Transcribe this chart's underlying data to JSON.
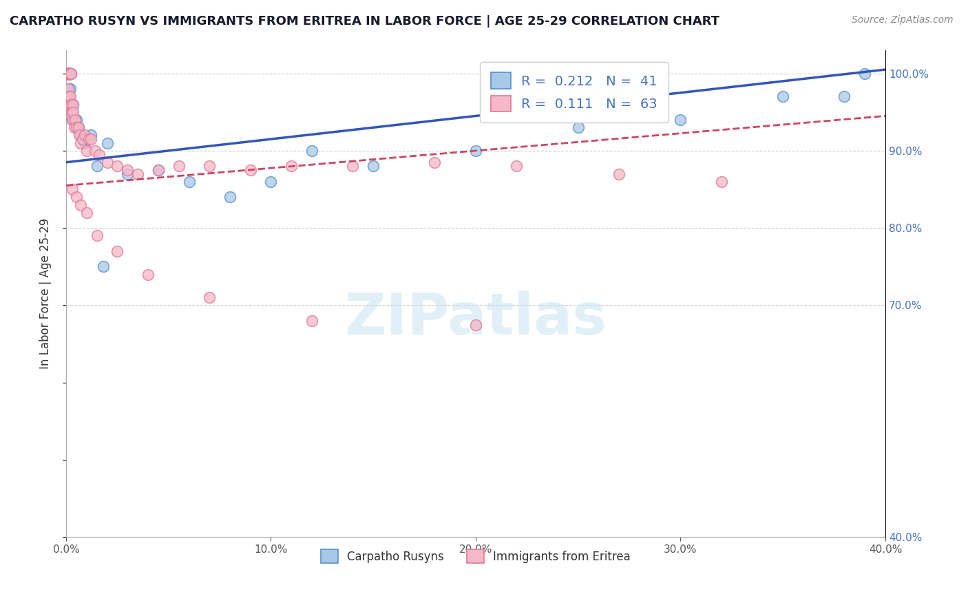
{
  "title": "CARPATHO RUSYN VS IMMIGRANTS FROM ERITREA IN LABOR FORCE | AGE 25-29 CORRELATION CHART",
  "source": "Source: ZipAtlas.com",
  "ylabel": "In Labor Force | Age 25-29",
  "xlim": [
    0.0,
    40.0
  ],
  "ylim": [
    40.0,
    103.0
  ],
  "xticks": [
    0.0,
    10.0,
    20.0,
    30.0,
    40.0
  ],
  "yticks_right": [
    100.0,
    90.0,
    80.0,
    70.0,
    40.0
  ],
  "yticks_grid": [
    100.0,
    90.0,
    80.0,
    70.0,
    40.0
  ],
  "blue_color": "#a8c8e8",
  "pink_color": "#f4b8c8",
  "blue_edge": "#5590c8",
  "pink_edge": "#e07898",
  "trend_blue_color": "#3355bb",
  "trend_pink_color": "#cc4466",
  "legend_R_blue": "0.212",
  "legend_N_blue": "41",
  "legend_R_pink": "0.111",
  "legend_N_pink": "63",
  "label_blue": "Carpatho Rusyns",
  "label_pink": "Immigrants from Eritrea",
  "watermark": "ZIPatlas",
  "blue_trend_x0": 0.0,
  "blue_trend_y0": 88.5,
  "blue_trend_x1": 40.0,
  "blue_trend_y1": 100.5,
  "pink_trend_x0": 0.0,
  "pink_trend_y0": 85.5,
  "pink_trend_x1": 40.0,
  "pink_trend_y1": 94.5,
  "blue_x": [
    0.05,
    0.07,
    0.08,
    0.09,
    0.1,
    0.1,
    0.12,
    0.12,
    0.13,
    0.15,
    0.15,
    0.16,
    0.18,
    0.2,
    0.2,
    0.25,
    0.3,
    0.35,
    0.4,
    0.5,
    0.6,
    0.7,
    0.9,
    1.0,
    1.2,
    1.5,
    2.0,
    3.0,
    4.5,
    6.0,
    8.0,
    10.0,
    12.0,
    15.0,
    20.0,
    25.0,
    30.0,
    35.0,
    38.0,
    39.0,
    1.8
  ],
  "blue_y": [
    100.0,
    100.0,
    100.0,
    100.0,
    100.0,
    97.0,
    100.0,
    98.0,
    100.0,
    100.0,
    96.0,
    100.0,
    100.0,
    100.0,
    98.0,
    100.0,
    94.0,
    96.0,
    94.0,
    94.0,
    93.0,
    92.0,
    91.0,
    91.5,
    92.0,
    88.0,
    91.0,
    87.0,
    87.5,
    86.0,
    84.0,
    86.0,
    90.0,
    88.0,
    90.0,
    93.0,
    94.0,
    97.0,
    97.0,
    100.0,
    75.0
  ],
  "pink_x": [
    0.05,
    0.06,
    0.07,
    0.08,
    0.09,
    0.1,
    0.1,
    0.1,
    0.11,
    0.12,
    0.12,
    0.13,
    0.14,
    0.15,
    0.15,
    0.16,
    0.17,
    0.18,
    0.2,
    0.2,
    0.22,
    0.25,
    0.28,
    0.3,
    0.32,
    0.35,
    0.4,
    0.45,
    0.5,
    0.6,
    0.65,
    0.7,
    0.8,
    0.9,
    1.0,
    1.1,
    1.2,
    1.4,
    1.6,
    2.0,
    2.5,
    3.0,
    3.5,
    4.5,
    5.5,
    7.0,
    9.0,
    11.0,
    14.0,
    18.0,
    22.0,
    27.0,
    32.0,
    0.3,
    0.5,
    0.7,
    1.0,
    1.5,
    2.5,
    4.0,
    7.0,
    12.0,
    20.0
  ],
  "pink_y": [
    100.0,
    100.0,
    100.0,
    100.0,
    100.0,
    100.0,
    98.0,
    96.0,
    100.0,
    100.0,
    97.0,
    100.0,
    100.0,
    100.0,
    97.0,
    100.0,
    100.0,
    100.0,
    100.0,
    97.0,
    100.0,
    96.0,
    95.0,
    94.0,
    96.0,
    95.0,
    93.0,
    94.0,
    93.0,
    93.0,
    92.0,
    91.0,
    91.5,
    92.0,
    90.0,
    91.5,
    91.5,
    90.0,
    89.5,
    88.5,
    88.0,
    87.5,
    87.0,
    87.5,
    88.0,
    88.0,
    87.5,
    88.0,
    88.0,
    88.5,
    88.0,
    87.0,
    86.0,
    85.0,
    84.0,
    83.0,
    82.0,
    79.0,
    77.0,
    74.0,
    71.0,
    68.0,
    67.5
  ]
}
